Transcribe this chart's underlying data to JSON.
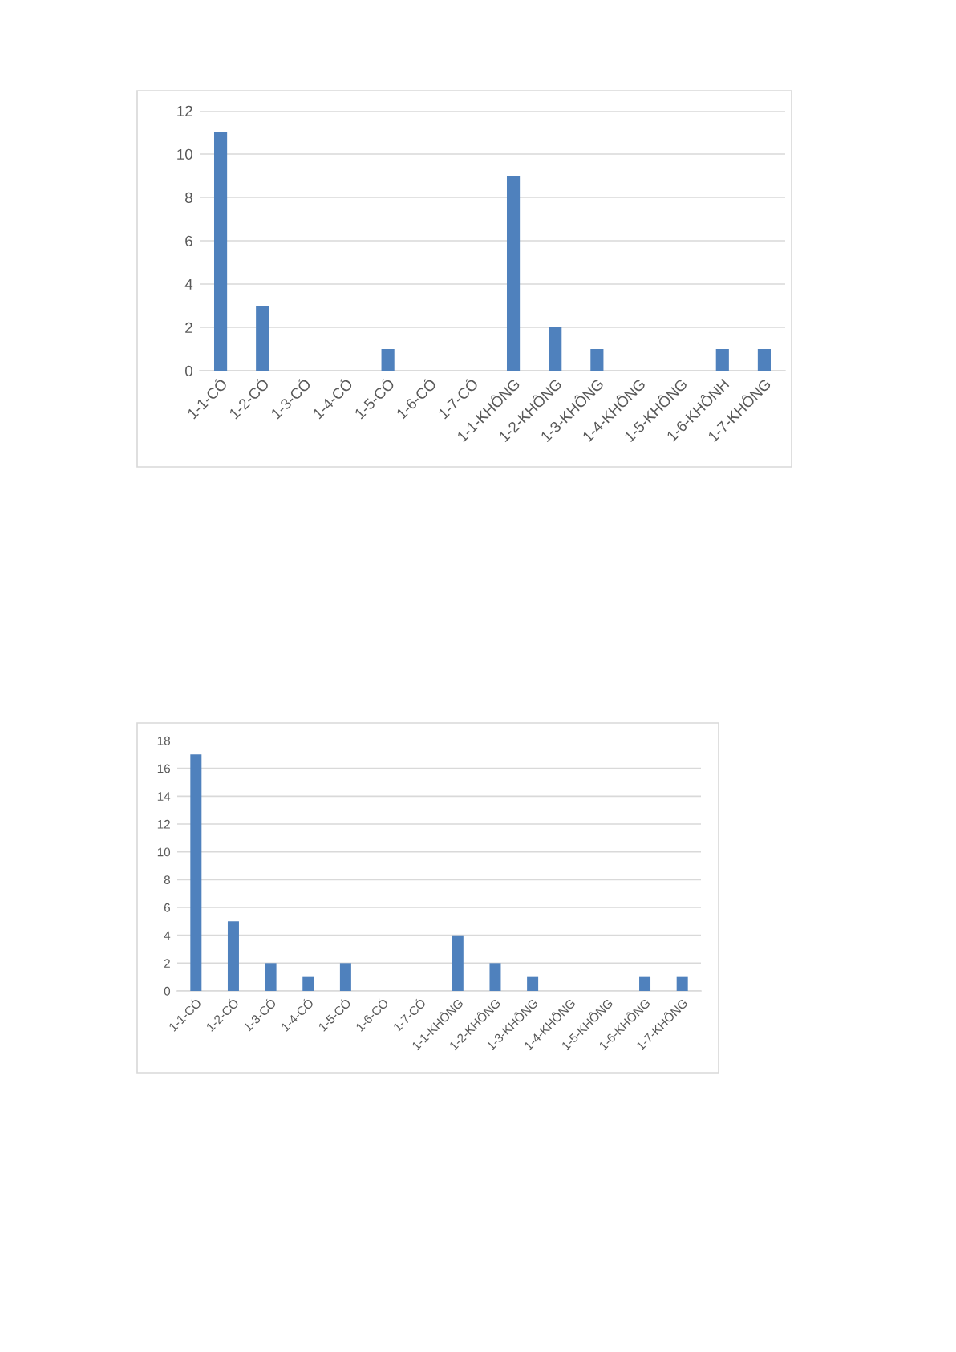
{
  "chart_data": [
    {
      "type": "bar",
      "categories": [
        "1-1-CÓ",
        "1-2-CÓ",
        "1-3-CÓ",
        "1-4-CÓ",
        "1-5-CÓ",
        "1-6-CÓ",
        "1-7-CÓ",
        "1-1-KHÔNG",
        "1-2-KHÔNG",
        "1-3-KHÔNG",
        "1-4-KHÔNG",
        "1-5-KHÔNG",
        "1-6-KHÔNH",
        "1-7-KHÔNG"
      ],
      "values": [
        11,
        3,
        0,
        0,
        1,
        0,
        0,
        9,
        2,
        1,
        0,
        0,
        1,
        1
      ],
      "color": "#4f81bd",
      "ylim": [
        0,
        12
      ],
      "yticks": [
        0,
        2,
        4,
        6,
        8,
        10,
        12
      ],
      "grid": "y"
    },
    {
      "type": "bar",
      "categories": [
        "1-1-CÓ",
        "1-2-CÓ",
        "1-3-CÓ",
        "1-4-CÓ",
        "1-5-CÓ",
        "1-6-CÓ",
        "1-7-CÓ",
        "1-1-KHÔNG",
        "1-2-KHÔNG",
        "1-3-KHÔNG",
        "1-4-KHÔNG",
        "1-5-KHÔNG",
        "1-6-KHÔNG",
        "1-7-KHÔNG"
      ],
      "values": [
        17,
        5,
        2,
        1,
        2,
        0,
        0,
        4,
        2,
        1,
        0,
        0,
        1,
        1
      ],
      "color": "#4f81bd",
      "ylim": [
        0,
        18
      ],
      "yticks": [
        0,
        2,
        4,
        6,
        8,
        10,
        12,
        14,
        16,
        18
      ],
      "grid": "y"
    }
  ]
}
